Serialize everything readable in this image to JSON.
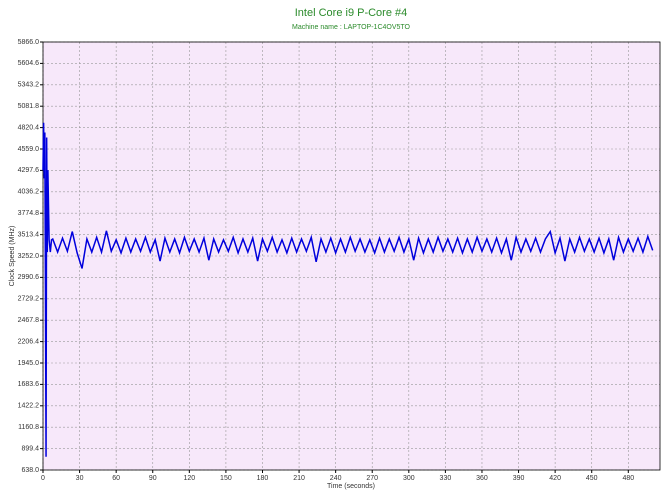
{
  "chart_data": {
    "type": "line",
    "title": "Intel Core i9 P-Core #4",
    "subtitle": "Machine name : LAPTOP-1C4OV5TO",
    "x_label": "Time (seconds)",
    "y_label": "Clock Speed (MHz)",
    "xlim": [
      0,
      506
    ],
    "ylim": [
      638,
      5866
    ],
    "xticks": [
      0,
      30,
      60,
      90,
      120,
      150,
      180,
      210,
      240,
      270,
      300,
      330,
      360,
      390,
      420,
      450,
      480
    ],
    "yticks": [
      {
        "value": 638,
        "label": "638.0"
      },
      899.4,
      1160.8,
      1422.2,
      1683.6,
      {
        "value": 1945,
        "label": "1945.0"
      },
      2206.4,
      2467.8,
      2729.2,
      2990.6,
      {
        "value": 3252,
        "label": "3252.0"
      },
      3513.4,
      3774.8,
      4036.2,
      4297.6,
      {
        "value": 4559,
        "label": "4559.0"
      },
      4820.4,
      5081.8,
      5343.2,
      5604.6,
      {
        "value": 5866,
        "label": "5866.0"
      }
    ],
    "grid": true,
    "background": "#f7e8fa",
    "x": [
      0,
      0.5,
      1,
      1.5,
      2,
      2.5,
      3,
      3.5,
      4,
      5,
      6,
      7,
      8,
      12,
      16,
      20,
      24,
      28,
      32,
      36,
      40,
      44,
      48,
      52,
      56,
      60,
      64,
      68,
      72,
      76,
      80,
      84,
      88,
      92,
      96,
      100,
      104,
      108,
      112,
      116,
      120,
      124,
      128,
      132,
      136,
      140,
      144,
      148,
      152,
      156,
      160,
      164,
      168,
      172,
      176,
      180,
      184,
      188,
      192,
      196,
      200,
      204,
      208,
      212,
      216,
      220,
      224,
      228,
      232,
      236,
      240,
      244,
      248,
      252,
      256,
      260,
      264,
      268,
      272,
      276,
      280,
      284,
      288,
      292,
      296,
      300,
      304,
      308,
      312,
      316,
      320,
      324,
      328,
      332,
      336,
      340,
      344,
      348,
      352,
      356,
      360,
      364,
      368,
      372,
      376,
      380,
      384,
      388,
      392,
      396,
      400,
      404,
      408,
      412,
      416,
      420,
      424,
      428,
      432,
      436,
      440,
      444,
      448,
      452,
      456,
      460,
      464,
      468,
      472,
      476,
      480,
      484,
      488,
      492,
      496,
      500
    ],
    "series": [
      {
        "name": "Clock Speed",
        "color": "#0000dd",
        "values": [
          4300,
          4880,
          4200,
          4760,
          2900,
          800,
          4700,
          3300,
          4300,
          3450,
          3300,
          3450,
          3460,
          3300,
          3470,
          3310,
          3550,
          3290,
          3100,
          3460,
          3300,
          3480,
          3300,
          3560,
          3310,
          3450,
          3290,
          3470,
          3300,
          3460,
          3310,
          3480,
          3300,
          3450,
          3190,
          3470,
          3300,
          3460,
          3290,
          3480,
          3310,
          3460,
          3300,
          3470,
          3200,
          3460,
          3300,
          3450,
          3310,
          3480,
          3290,
          3460,
          3300,
          3470,
          3190,
          3460,
          3310,
          3480,
          3300,
          3450,
          3290,
          3470,
          3300,
          3460,
          3310,
          3480,
          3180,
          3460,
          3300,
          3470,
          3290,
          3460,
          3300,
          3480,
          3310,
          3460,
          3300,
          3450,
          3290,
          3470,
          3300,
          3460,
          3310,
          3480,
          3300,
          3460,
          3200,
          3470,
          3290,
          3460,
          3300,
          3480,
          3310,
          3460,
          3300,
          3470,
          3290,
          3460,
          3300,
          3480,
          3310,
          3460,
          3300,
          3470,
          3290,
          3460,
          3200,
          3480,
          3300,
          3460,
          3310,
          3470,
          3300,
          3460,
          3550,
          3290,
          3470,
          3190,
          3460,
          3300,
          3480,
          3310,
          3460,
          3300,
          3470,
          3290,
          3460,
          3200,
          3480,
          3300,
          3460,
          3310,
          3470,
          3300,
          3490,
          3320
        ]
      }
    ]
  }
}
